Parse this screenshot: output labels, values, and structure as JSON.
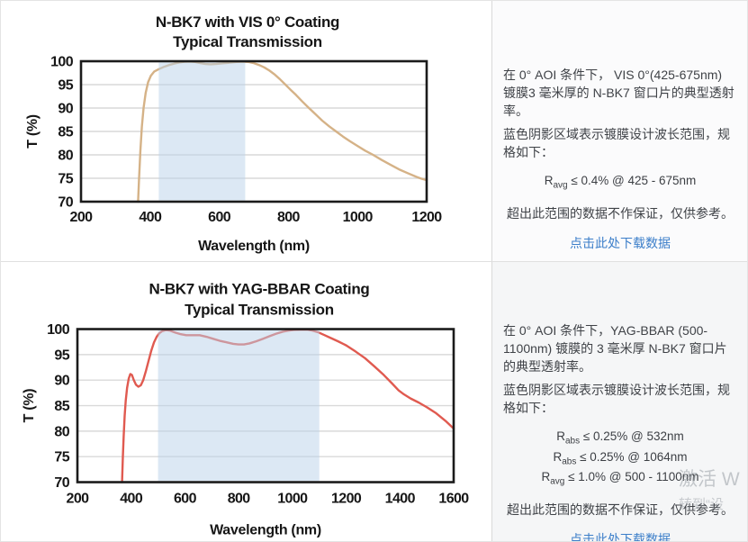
{
  "chart_data": [
    {
      "type": "line",
      "title": "N-BK7 with VIS 0° Coating",
      "subtitle": "Typical Transmission",
      "xlabel": "Wavelength (nm)",
      "ylabel": "T (%)",
      "xlim": [
        200,
        1200
      ],
      "ylim": [
        70,
        100
      ],
      "x_ticks": [
        200,
        400,
        600,
        800,
        1000,
        1200
      ],
      "y_ticks": [
        70,
        75,
        80,
        85,
        90,
        95,
        100
      ],
      "grid": "horizontal",
      "legend": "none",
      "line_color": "#d5b287",
      "grid_color": "#d9d9d9",
      "border_color": "#1b1b1b",
      "band_nm": [
        425,
        675
      ],
      "band_fill": "rgba(185,210,233,0.5)",
      "series": [
        {
          "name": "typical-transmission-vis0",
          "points": [
            [
              365,
              70
            ],
            [
              368,
              75
            ],
            [
              372,
              81
            ],
            [
              376,
              86
            ],
            [
              381,
              90
            ],
            [
              387,
              93.2
            ],
            [
              394,
              95.5
            ],
            [
              402,
              96.9
            ],
            [
              412,
              97.8
            ],
            [
              425,
              98.3
            ],
            [
              440,
              98.8
            ],
            [
              455,
              99.2
            ],
            [
              470,
              99.5
            ],
            [
              485,
              99.75
            ],
            [
              500,
              99.9
            ],
            [
              515,
              99.95
            ],
            [
              530,
              99.85
            ],
            [
              545,
              99.6
            ],
            [
              560,
              99.4
            ],
            [
              575,
              99.35
            ],
            [
              590,
              99.4
            ],
            [
              610,
              99.55
            ],
            [
              630,
              99.7
            ],
            [
              650,
              99.85
            ],
            [
              668,
              99.9
            ],
            [
              685,
              99.85
            ],
            [
              700,
              99.6
            ],
            [
              715,
              99.2
            ],
            [
              730,
              98.7
            ],
            [
              745,
              98
            ],
            [
              760,
              97.2
            ],
            [
              775,
              96.2
            ],
            [
              790,
              95.1
            ],
            [
              805,
              94
            ],
            [
              822,
              92.8
            ],
            [
              840,
              91.4
            ],
            [
              858,
              90.1
            ],
            [
              878,
              88.7
            ],
            [
              898,
              87.3
            ],
            [
              918,
              86.1
            ],
            [
              938,
              85
            ],
            [
              958,
              83.9
            ],
            [
              978,
              82.9
            ],
            [
              1000,
              81.9
            ],
            [
              1022,
              80.9
            ],
            [
              1045,
              80
            ],
            [
              1070,
              78.9
            ],
            [
              1095,
              77.9
            ],
            [
              1120,
              76.9
            ],
            [
              1145,
              76.1
            ],
            [
              1170,
              75.3
            ],
            [
              1185,
              74.9
            ],
            [
              1200,
              74.6
            ]
          ]
        }
      ]
    },
    {
      "type": "line",
      "title": "N-BK7 with YAG-BBAR Coating",
      "subtitle": "Typical Transmission",
      "xlabel": "Wavelength (nm)",
      "ylabel": "T (%)",
      "xlim": [
        200,
        1600
      ],
      "ylim": [
        70,
        100
      ],
      "x_ticks": [
        200,
        400,
        600,
        800,
        1000,
        1200,
        1400,
        1600
      ],
      "y_ticks": [
        70,
        75,
        80,
        85,
        90,
        95,
        100
      ],
      "grid": "horizontal",
      "legend": "none",
      "line_color": "#e05a50",
      "grid_color": "#d9d9d9",
      "border_color": "#1b1b1b",
      "band_nm": [
        500,
        1100
      ],
      "band_fill": "rgba(185,210,233,0.5)",
      "series": [
        {
          "name": "typical-transmission-yag-bbar",
          "points": [
            [
              366,
              70
            ],
            [
              369,
              75
            ],
            [
              372,
              79
            ],
            [
              376,
              83
            ],
            [
              380,
              86
            ],
            [
              385,
              88.5
            ],
            [
              391,
              90.3
            ],
            [
              397,
              91.2
            ],
            [
              403,
              91
            ],
            [
              410,
              90
            ],
            [
              418,
              89.1
            ],
            [
              427,
              88.7
            ],
            [
              436,
              89
            ],
            [
              445,
              90
            ],
            [
              455,
              91.8
            ],
            [
              465,
              93.8
            ],
            [
              475,
              95.8
            ],
            [
              485,
              97.4
            ],
            [
              495,
              98.5
            ],
            [
              505,
              99.2
            ],
            [
              515,
              99.6
            ],
            [
              530,
              99.8
            ],
            [
              545,
              99.7
            ],
            [
              565,
              99.3
            ],
            [
              585,
              99
            ],
            [
              605,
              98.8
            ],
            [
              630,
              98.8
            ],
            [
              655,
              98.8
            ],
            [
              680,
              98.5
            ],
            [
              705,
              98.1
            ],
            [
              730,
              97.7
            ],
            [
              755,
              97.4
            ],
            [
              780,
              97.1
            ],
            [
              800,
              97
            ],
            [
              820,
              97
            ],
            [
              840,
              97.2
            ],
            [
              865,
              97.6
            ],
            [
              890,
              98.1
            ],
            [
              915,
              98.6
            ],
            [
              940,
              99.1
            ],
            [
              965,
              99.5
            ],
            [
              985,
              99.7
            ],
            [
              1005,
              99.85
            ],
            [
              1030,
              99.9
            ],
            [
              1055,
              99.9
            ],
            [
              1075,
              99.7
            ],
            [
              1095,
              99.4
            ],
            [
              1120,
              98.8
            ],
            [
              1145,
              98.2
            ],
            [
              1170,
              97.6
            ],
            [
              1200,
              96.8
            ],
            [
              1235,
              95.6
            ],
            [
              1270,
              94.3
            ],
            [
              1305,
              92.7
            ],
            [
              1340,
              91
            ],
            [
              1370,
              89.4
            ],
            [
              1395,
              88
            ],
            [
              1415,
              87.2
            ],
            [
              1440,
              86.4
            ],
            [
              1470,
              85.6
            ],
            [
              1500,
              84.7
            ],
            [
              1535,
              83.5
            ],
            [
              1570,
              82
            ],
            [
              1600,
              80.5
            ]
          ]
        }
      ]
    }
  ],
  "panels": [
    {
      "para1": "在 0° AOI 条件下， VIS 0°(425-675nm) 镀膜3 毫米厚的 N-BK7 窗口片的典型透射率。",
      "para2": "蓝色阴影区域表示镀膜设计波长范围，规格如下：",
      "specs": [
        {
          "base": "R",
          "sub": "avg",
          "rest": " ≤ 0.4% @ 425 - 675nm"
        }
      ],
      "disclaimer": "超出此范围的数据不作保证，仅供参考。",
      "link": "点击此处下载数据",
      "link_color": "#3b7ec9"
    },
    {
      "para1": "在 0° AOI 条件下，YAG-BBAR (500-1100nm) 镀膜的 3 毫米厚 N-BK7 窗口片的典型透射率。",
      "para2": "蓝色阴影区域表示镀膜设计波长范围，规格如下：",
      "specs": [
        {
          "base": "R",
          "sub": "abs",
          "rest": " ≤ 0.25% @ 532nm"
        },
        {
          "base": "R",
          "sub": "abs",
          "rest": " ≤ 0.25% @ 1064nm"
        },
        {
          "base": "R",
          "sub": "avg",
          "rest": " ≤ 1.0% @ 500 - 1100nm"
        }
      ],
      "disclaimer": "超出此范围的数据不作保证，仅供参考。",
      "link": "点击此处下载数据",
      "link_color": "#3b7ec9"
    }
  ],
  "watermark": {
    "line1": "激活 W",
    "line2": "转到“设"
  }
}
